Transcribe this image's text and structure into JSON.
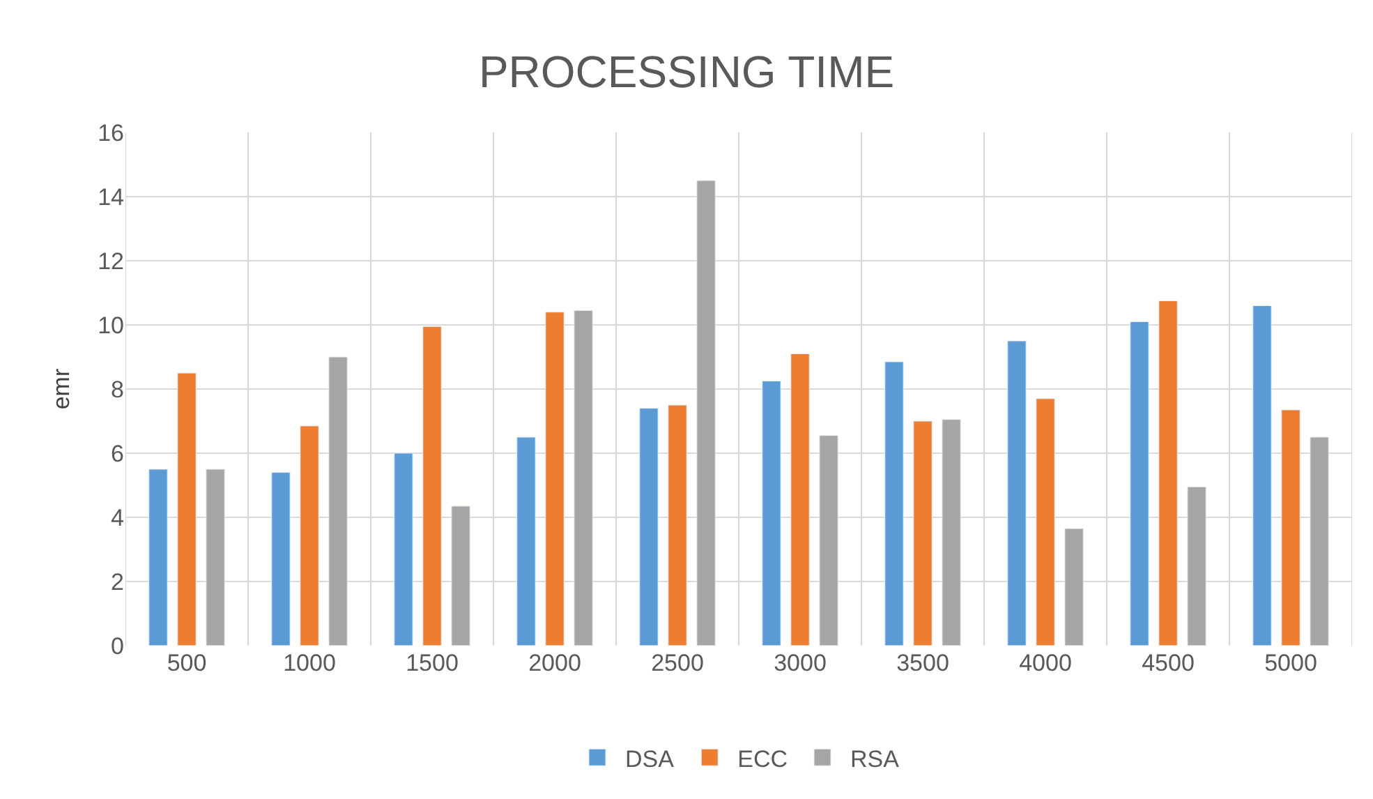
{
  "chart_data": {
    "type": "bar",
    "title": "PROCESSING TIME",
    "ylabel": "emr",
    "categories": [
      "500",
      "1000",
      "1500",
      "2000",
      "2500",
      "3000",
      "3500",
      "4000",
      "4500",
      "5000"
    ],
    "series": [
      {
        "name": "DSA",
        "color": "#5b9bd5",
        "values": [
          5.5,
          5.4,
          6.0,
          6.5,
          7.4,
          8.25,
          8.85,
          9.5,
          10.1,
          10.6
        ]
      },
      {
        "name": "ECC",
        "color": "#ed7d31",
        "values": [
          8.5,
          6.85,
          9.95,
          10.4,
          7.5,
          9.1,
          7.0,
          7.7,
          10.75,
          7.35
        ]
      },
      {
        "name": "RSA",
        "color": "#a5a5a5",
        "values": [
          5.5,
          9.0,
          4.35,
          10.45,
          14.5,
          6.55,
          7.05,
          3.65,
          4.95,
          6.5
        ]
      }
    ],
    "ylim": [
      0,
      16
    ],
    "yticks": [
      0,
      2,
      4,
      6,
      8,
      10,
      12,
      14,
      16
    ],
    "grid": true,
    "legend": "bottom"
  }
}
